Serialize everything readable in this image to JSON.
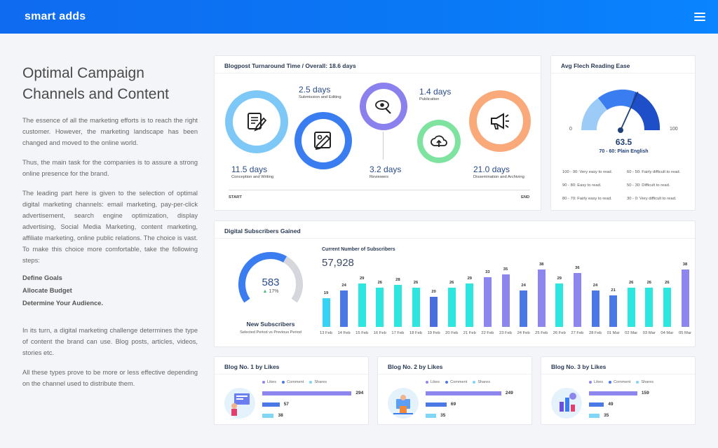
{
  "header": {
    "brand": "smart adds"
  },
  "article": {
    "title_line1": "Optimal Campaign",
    "title_line2": "Channels and Content",
    "p1": "The essence of all the marketing efforts is to reach the right customer. However, the marketing landscape has been changed and moved to the online world.",
    "p2": "Thus, the main task for the companies is to assure a strong online presence for the brand.",
    "p3": "The leading part here is given to the selection of optimal digital marketing channels: email marketing, pay-per-click advertisement, search engine optimization, display advertising, Social Media Marketing, content marketing, affiliate marketing, online public relations. The choice is vast. To make this choice more comfortable, take the following steps:",
    "steps": [
      "Define Goals",
      "Allocate Budget",
      "Determine Your Audience."
    ],
    "p4": "In its turn, a digital marketing challenge determines the type of content the brand can use. Blog posts, articles, videos, stories etc.",
    "p5": "All these types prove to be more or less effective depending on the channel used to distribute them."
  },
  "turnaround": {
    "title": "Blogpost Turnaround Time / Overall: 18.6 days",
    "start": "START",
    "end": "END",
    "stages": [
      {
        "value": "11.5 days",
        "label": "Conception and Writing",
        "color": "#7dc8f7",
        "icon": "document-pen-icon"
      },
      {
        "value": "2.5 days",
        "label": "Submission and Editing",
        "color": "#3a7df0",
        "icon": "image-edit-icon"
      },
      {
        "value": "3.2 days",
        "label": "Reviewers",
        "color": "#8a80ee",
        "icon": "eye-search-icon"
      },
      {
        "value": "1.4 days",
        "label": "Publication",
        "color": "#7ee39f",
        "icon": "cloud-upload-icon"
      },
      {
        "value": "21.0 days",
        "label": "Dissemination and Archiving",
        "color": "#f9a97a",
        "icon": "megaphone-icon"
      }
    ]
  },
  "reading": {
    "title": "Avg Flech Reading Ease",
    "min": "0",
    "max": "100",
    "score": "63.5",
    "score_value": 63.5,
    "score_label": "70 - 60: Plain English",
    "legend": [
      "100 - 90: Very easy to read.",
      "90 - 80: Easy to read.",
      "80 - 70: Fairly easy to read.",
      "60 - 50: Fairly difficult to read.",
      "50 - 30: Difficult to read.",
      "30 - 0: Very difficult to read."
    ]
  },
  "subscribers": {
    "title": "Digital Subscribers Gained",
    "new_count": "583",
    "new_pct": "17%",
    "gauge_fraction": 0.62,
    "new_label": "New Subscribers",
    "new_sub": "Selected Period vs Previous Period",
    "chart_title": "Current Number of Subscribers",
    "total": "57,928"
  },
  "chart_data": {
    "type": "bar",
    "title": "Current Number of Subscribers",
    "categories": [
      "13 Feb",
      "14 Feb",
      "15 Feb",
      "16 Feb",
      "17 Feb",
      "18 Feb",
      "19 Feb",
      "20 Feb",
      "21 Feb",
      "22 Feb",
      "23 Feb",
      "24 Feb",
      "25 Feb",
      "26 Feb",
      "27 Feb",
      "28 Feb",
      "01 Mar",
      "02 Mar",
      "03 Mar",
      "04 Mar",
      "05 Mar"
    ],
    "values": [
      19,
      24,
      29,
      26,
      28,
      26,
      20,
      26,
      29,
      33,
      35,
      24,
      38,
      29,
      36,
      24,
      21,
      26,
      26,
      26,
      38
    ],
    "colors": [
      "#37d3f5",
      "#4a78e6",
      "#2ee6e0",
      "#2ee6e0",
      "#2ee6e0",
      "#2ee6e0",
      "#4a6ee0",
      "#2ee6e0",
      "#2ee6e0",
      "#8d86ee",
      "#8d86ee",
      "#4a78e6",
      "#8d86ee",
      "#2ee6e0",
      "#8d86ee",
      "#4a78e6",
      "#4a78e6",
      "#2ee6e0",
      "#2ee6e0",
      "#2ee6e0",
      "#8d86ee"
    ],
    "ylim": [
      0,
      40
    ],
    "legend": "none"
  },
  "blogs": [
    {
      "title": "Blog No. 1 by Likes",
      "likes": 294,
      "comments": 57,
      "shares": 38
    },
    {
      "title": "Blog No. 2 by Likes",
      "likes": 249,
      "comments": 69,
      "shares": 35
    },
    {
      "title": "Blog No. 3 by Likes",
      "likes": 159,
      "comments": 49,
      "shares": 35
    }
  ],
  "blog_legend": {
    "likes": "Likes",
    "comment": "Comment",
    "shares": "Shares"
  },
  "colors": {
    "likes": "#8d86ee",
    "comment": "#4a78e6",
    "shares": "#7fd6f7",
    "accent": "#0a78f5"
  }
}
